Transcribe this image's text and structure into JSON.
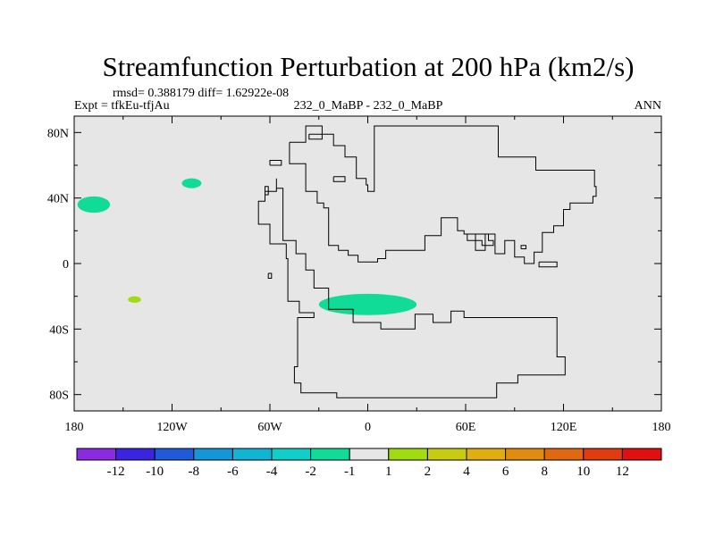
{
  "chart_data": {
    "type": "heatmap",
    "title": "Streamfunction Perturbation at 200 hPa (km2/s)",
    "stats": "rmsd= 0.388179 diff= 1.62922e-08",
    "left_label": "Expt = tfkEu-tfjAu",
    "center_label": "232_0_MaBP - 232_0_MaBP",
    "right_label": "ANN",
    "projection": "cylindrical equidistant",
    "xlim": [
      -180,
      180
    ],
    "ylim": [
      -90,
      90
    ],
    "x_ticks": [
      {
        "value": -180,
        "label": "180"
      },
      {
        "value": -120,
        "label": "120W"
      },
      {
        "value": -60,
        "label": "60W"
      },
      {
        "value": 0,
        "label": "0"
      },
      {
        "value": 60,
        "label": "60E"
      },
      {
        "value": 120,
        "label": "120E"
      },
      {
        "value": 180,
        "label": "180"
      }
    ],
    "y_ticks": [
      {
        "value": 80,
        "label": "80N"
      },
      {
        "value": 40,
        "label": "40N"
      },
      {
        "value": 0,
        "label": "0"
      },
      {
        "value": -40,
        "label": "40S"
      },
      {
        "value": -80,
        "label": "80S"
      }
    ],
    "background_color": "#e6e6e6",
    "colorbar": {
      "levels": [
        -12,
        -10,
        -8,
        -6,
        -4,
        -2,
        -1,
        1,
        2,
        4,
        6,
        8,
        10,
        12
      ],
      "labels": [
        "-12",
        "-10",
        "-8",
        "-6",
        "-4",
        "-2",
        "-1",
        "1",
        "2",
        "4",
        "6",
        "8",
        "10",
        "12"
      ],
      "colors": [
        "#8a2be2",
        "#3a24e0",
        "#1f5ad8",
        "#1596d6",
        "#10b5d4",
        "#10cfc8",
        "#10dc98",
        "#e6e6e6",
        "#a0dc10",
        "#c8cc10",
        "#e0ae10",
        "#e08c10",
        "#e06810",
        "#e03c10",
        "#e01010"
      ]
    },
    "anomalies": [
      {
        "lon": -168,
        "lat": 36,
        "rx": 10,
        "ry": 5,
        "color": "#10dc98"
      },
      {
        "lon": -108,
        "lat": 49,
        "rx": 6,
        "ry": 3,
        "color": "#10dc98"
      },
      {
        "lon": -143,
        "lat": -22,
        "rx": 4,
        "ry": 2,
        "color": "#a0dc10"
      },
      {
        "lon": 0,
        "lat": -25,
        "rx": 30,
        "ry": 6.5,
        "color": "#10dc98"
      }
    ],
    "coastlines": [
      [
        [
          -48,
          74
        ],
        [
          -38,
          74
        ],
        [
          -38,
          84
        ],
        [
          -28,
          84
        ],
        [
          -28,
          79
        ],
        [
          -21,
          79
        ],
        [
          -21,
          72
        ],
        [
          -14,
          72
        ],
        [
          -14,
          65
        ],
        [
          -7,
          65
        ],
        [
          -7,
          52
        ],
        [
          -1,
          52
        ],
        [
          -1,
          48
        ],
        [
          0,
          48
        ],
        [
          0,
          44
        ],
        [
          4,
          44
        ],
        [
          4,
          84
        ],
        [
          80,
          84
        ],
        [
          80,
          65
        ],
        [
          103,
          65
        ],
        [
          103,
          57
        ],
        [
          139,
          57
        ],
        [
          139,
          47
        ],
        [
          140,
          47
        ],
        [
          140,
          41
        ],
        [
          138,
          41
        ],
        [
          138,
          37
        ],
        [
          124,
          37
        ],
        [
          124,
          33
        ],
        [
          120,
          33
        ],
        [
          120,
          23
        ],
        [
          114,
          23
        ],
        [
          114,
          19
        ],
        [
          107,
          19
        ],
        [
          107,
          7
        ],
        [
          102,
          7
        ],
        [
          102,
          0
        ],
        [
          96,
          0
        ],
        [
          96,
          4
        ],
        [
          90,
          4
        ],
        [
          90,
          14
        ],
        [
          84,
          14
        ],
        [
          84,
          6
        ],
        [
          78,
          6
        ],
        [
          78,
          18
        ],
        [
          72,
          18
        ],
        [
          72,
          8
        ],
        [
          66,
          8
        ],
        [
          66,
          18
        ],
        [
          59,
          18
        ],
        [
          59,
          20
        ],
        [
          55,
          20
        ],
        [
          55,
          28
        ],
        [
          45,
          28
        ],
        [
          45,
          17
        ],
        [
          35,
          17
        ],
        [
          35,
          8
        ],
        [
          11,
          8
        ],
        [
          11,
          3
        ],
        [
          6,
          3
        ],
        [
          6,
          1
        ],
        [
          -6,
          1
        ],
        [
          -6,
          5
        ],
        [
          -12,
          5
        ],
        [
          -12,
          8
        ],
        [
          -18,
          8
        ],
        [
          -18,
          11
        ],
        [
          -24,
          11
        ],
        [
          -24,
          34
        ],
        [
          -27,
          34
        ],
        [
          -27,
          37
        ],
        [
          -31,
          37
        ],
        [
          -31,
          44
        ],
        [
          -38,
          44
        ],
        [
          -38,
          61
        ],
        [
          -48,
          61
        ],
        [
          -48,
          74
        ]
      ],
      [
        [
          -56,
          52
        ],
        [
          -56,
          44
        ],
        [
          -63,
          44
        ],
        [
          -63,
          38
        ],
        [
          -67,
          38
        ],
        [
          -67,
          24
        ],
        [
          -60,
          24
        ],
        [
          -60,
          12
        ],
        [
          -50,
          12
        ],
        [
          -50,
          3
        ],
        [
          -49,
          3
        ],
        [
          -49,
          -23
        ],
        [
          -42,
          -23
        ],
        [
          -42,
          -30
        ],
        [
          -33,
          -30
        ],
        [
          -33,
          -33
        ],
        [
          -43,
          -33
        ],
        [
          -43,
          -63
        ],
        [
          -45,
          -63
        ],
        [
          -45,
          -73
        ],
        [
          -41,
          -73
        ],
        [
          -41,
          -79
        ],
        [
          -19,
          -79
        ],
        [
          -19,
          -82
        ],
        [
          79,
          -82
        ],
        [
          79,
          -73
        ],
        [
          92,
          -73
        ],
        [
          92,
          -68
        ],
        [
          121,
          -68
        ],
        [
          121,
          -57
        ],
        [
          116,
          -57
        ],
        [
          116,
          -33
        ],
        [
          59,
          -33
        ],
        [
          59,
          -29
        ],
        [
          51,
          -29
        ],
        [
          51,
          -36
        ],
        [
          40,
          -36
        ],
        [
          40,
          -31
        ],
        [
          29,
          -31
        ],
        [
          29,
          -40
        ],
        [
          8,
          -40
        ],
        [
          8,
          -36
        ],
        [
          -9,
          -36
        ],
        [
          -9,
          -28
        ],
        [
          -24,
          -28
        ],
        [
          -24,
          -15
        ],
        [
          -33,
          -15
        ],
        [
          -33,
          -4
        ],
        [
          -38,
          -4
        ],
        [
          -38,
          6
        ],
        [
          -44,
          6
        ],
        [
          -44,
          14
        ],
        [
          -52,
          14
        ],
        [
          -52,
          25
        ],
        [
          -52,
          46
        ],
        [
          -56,
          46
        ],
        [
          -56,
          52
        ]
      ],
      [
        [
          -60,
          60
        ],
        [
          -53,
          60
        ],
        [
          -53,
          63
        ],
        [
          -60,
          63
        ],
        [
          -60,
          60
        ]
      ],
      [
        [
          -63,
          42
        ],
        [
          -61,
          42
        ],
        [
          -61,
          47
        ],
        [
          -63,
          47
        ],
        [
          -63,
          42
        ]
      ],
      [
        [
          -61,
          -6
        ],
        [
          -59,
          -6
        ],
        [
          -59,
          -9
        ],
        [
          -61,
          -9
        ],
        [
          -61,
          -6
        ]
      ],
      [
        [
          -36,
          79
        ],
        [
          -28,
          79
        ],
        [
          -28,
          76
        ],
        [
          -36,
          76
        ],
        [
          -36,
          79
        ]
      ],
      [
        [
          -21,
          53
        ],
        [
          -14,
          53
        ],
        [
          -14,
          50
        ],
        [
          -21,
          50
        ],
        [
          -21,
          53
        ]
      ],
      [
        [
          61,
          18
        ],
        [
          74,
          18
        ],
        [
          74,
          14
        ],
        [
          77,
          14
        ],
        [
          77,
          11
        ],
        [
          70,
          11
        ],
        [
          70,
          14
        ],
        [
          61,
          14
        ],
        [
          61,
          18
        ]
      ],
      [
        [
          94,
          9
        ],
        [
          97,
          9
        ],
        [
          97,
          11
        ],
        [
          94,
          11
        ],
        [
          94,
          9
        ]
      ],
      [
        [
          105,
          1
        ],
        [
          116,
          1
        ],
        [
          116,
          -2
        ],
        [
          105,
          -2
        ],
        [
          105,
          1
        ]
      ]
    ]
  }
}
